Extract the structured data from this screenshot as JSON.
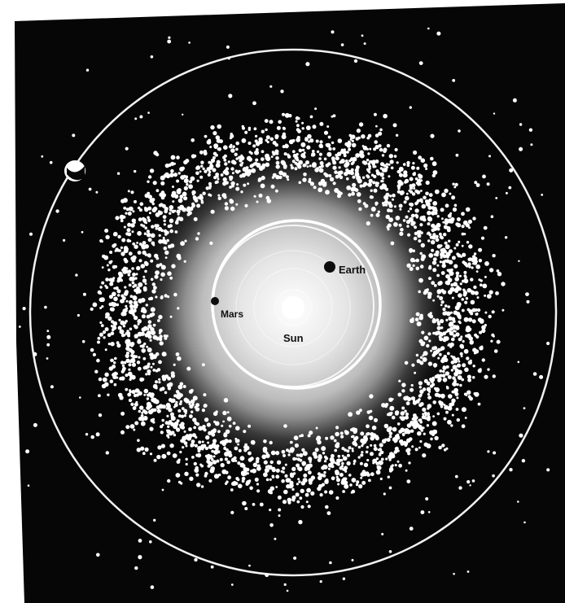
{
  "labels": {
    "earth": "Earth",
    "mars": "Mars",
    "sun": "Sun"
  },
  "colors": {
    "space": "#060606",
    "asteroids": "#ffffff",
    "orbit_lines": "#f2f2f2",
    "sun_center": "#ffffff",
    "inner_haze": "#9a9a9a",
    "planet": "#0c0c0c",
    "label_text": "#111111"
  }
}
